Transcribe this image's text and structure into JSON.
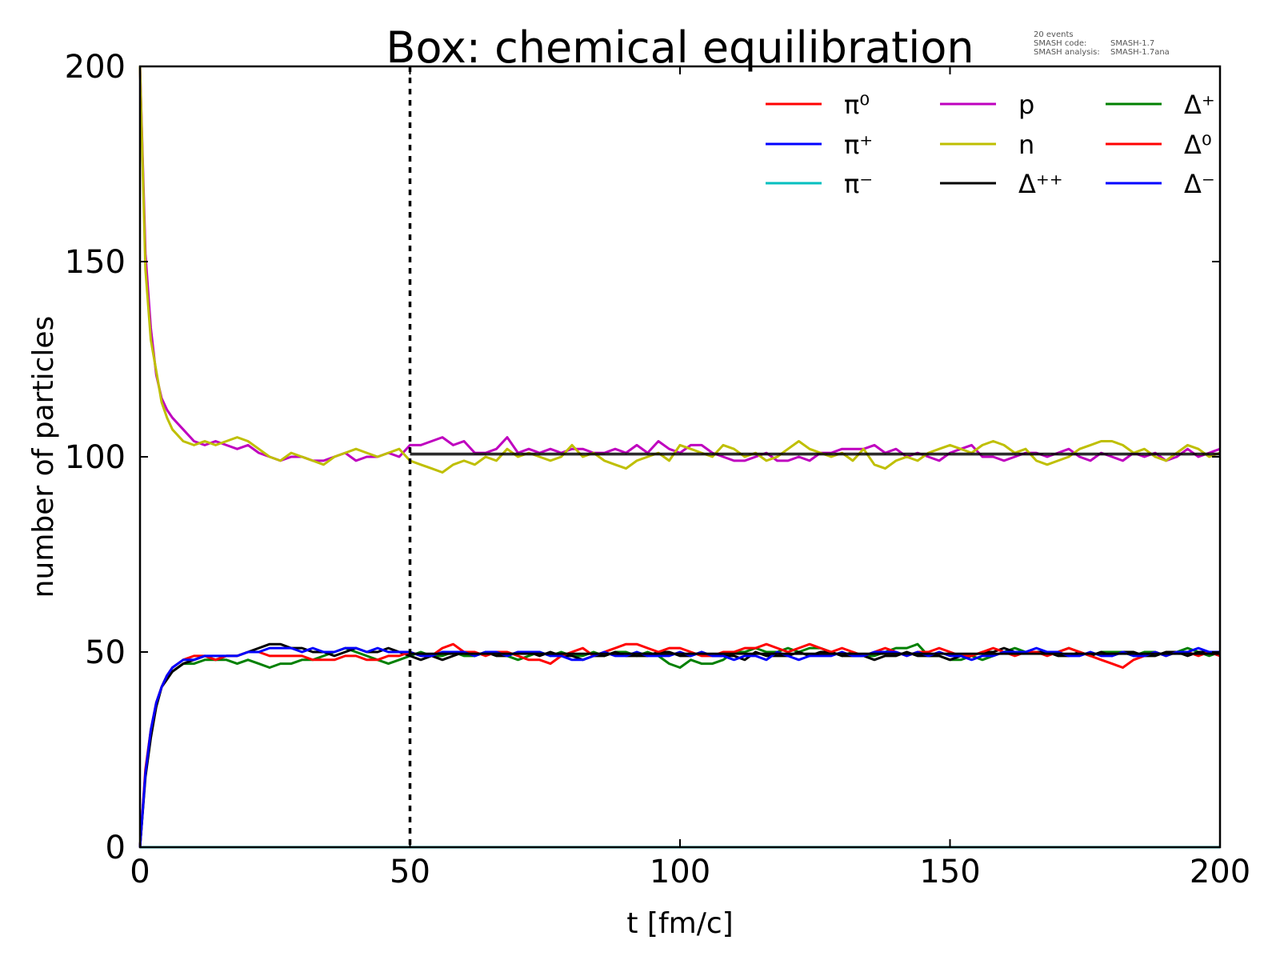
{
  "chart_data": {
    "type": "line",
    "title": "Box: chemical equilibration",
    "xlabel": "t [fm/c]",
    "ylabel": "number of particles",
    "xlim": [
      0,
      200
    ],
    "ylim": [
      0,
      200
    ],
    "xticks": [
      "0",
      "50",
      "100",
      "150",
      "200"
    ],
    "yticks": [
      "0",
      "50",
      "100",
      "150",
      "200"
    ],
    "annotation": {
      "events": "20 events",
      "code_label": "SMASH code:",
      "code_value": "SMASH-1.7",
      "analysis_label": "SMASH analysis:",
      "analysis_value": "SMASH-1.7ana"
    },
    "vertical_marker": {
      "x": 50,
      "style": "dotted"
    },
    "reference_lines": [
      {
        "y": 100.9,
        "x_start": 50,
        "x_end": 200
      },
      {
        "y": 100.5,
        "x_start": 50,
        "x_end": 200
      },
      {
        "y": 49.7,
        "x_start": 50,
        "x_end": 200
      },
      {
        "y": 49.4,
        "x_start": 50,
        "x_end": 200
      }
    ],
    "legend_position": "top-right",
    "x": [
      0,
      1,
      2,
      3,
      4,
      5,
      6,
      8,
      10,
      12,
      14,
      16,
      18,
      20,
      22,
      24,
      26,
      28,
      30,
      32,
      34,
      36,
      38,
      40,
      42,
      44,
      46,
      48,
      50,
      52,
      54,
      56,
      58,
      60,
      62,
      64,
      66,
      68,
      70,
      72,
      74,
      76,
      78,
      80,
      82,
      84,
      86,
      88,
      90,
      92,
      94,
      96,
      98,
      100,
      102,
      104,
      106,
      108,
      110,
      112,
      114,
      116,
      118,
      120,
      122,
      124,
      126,
      128,
      130,
      132,
      134,
      136,
      138,
      140,
      142,
      144,
      146,
      148,
      150,
      152,
      154,
      156,
      158,
      160,
      162,
      164,
      166,
      168,
      170,
      172,
      174,
      176,
      178,
      180,
      182,
      184,
      186,
      188,
      190,
      192,
      194,
      196,
      198,
      200
    ],
    "series": [
      {
        "name": "π⁰",
        "color": "#ff0000",
        "constant": 0
      },
      {
        "name": "π⁺",
        "color": "#0000ff",
        "constant": 0
      },
      {
        "name": "π⁻",
        "color": "#00bfbf",
        "constant": 0
      },
      {
        "name": "p",
        "color": "#bf00bf",
        "y": [
          200,
          152,
          133,
          121,
          115,
          112,
          110,
          107,
          104,
          103,
          104,
          103,
          102,
          103,
          101,
          100,
          99,
          100,
          100,
          99,
          99,
          100,
          101,
          99,
          100,
          100,
          101,
          100,
          103,
          103,
          104,
          105,
          103,
          104,
          101,
          101,
          102,
          105,
          101,
          102,
          101,
          102,
          101,
          102,
          102,
          101,
          101,
          102,
          101,
          103,
          101,
          104,
          102,
          101,
          103,
          103,
          101,
          100,
          99,
          99,
          100,
          101,
          99,
          99,
          100,
          99,
          101,
          101,
          102,
          102,
          102,
          103,
          101,
          102,
          100,
          101,
          100,
          99,
          101,
          102,
          103,
          100,
          100,
          99,
          100,
          101,
          101,
          100,
          101,
          102,
          100,
          99,
          101,
          100,
          99,
          101,
          100,
          101,
          99,
          100,
          102,
          100,
          101,
          102
        ]
      },
      {
        "name": "n",
        "color": "#bfbf00",
        "y": [
          200,
          148,
          130,
          122,
          114,
          110,
          107,
          104,
          103,
          104,
          103,
          104,
          105,
          104,
          102,
          100,
          99,
          101,
          100,
          99,
          98,
          100,
          101,
          102,
          101,
          100,
          101,
          102,
          99,
          98,
          97,
          96,
          98,
          99,
          98,
          100,
          99,
          102,
          100,
          101,
          100,
          99,
          100,
          103,
          100,
          101,
          99,
          98,
          97,
          99,
          100,
          101,
          99,
          103,
          102,
          101,
          100,
          103,
          102,
          100,
          101,
          99,
          100,
          102,
          104,
          102,
          101,
          100,
          101,
          99,
          102,
          98,
          97,
          99,
          100,
          99,
          101,
          102,
          103,
          102,
          101,
          103,
          104,
          103,
          101,
          102,
          99,
          98,
          99,
          100,
          102,
          103,
          104,
          104,
          103,
          101,
          102,
          100,
          99,
          101,
          103,
          102,
          100,
          101
        ]
      },
      {
        "name": "Δ⁺⁺",
        "color": "#000000",
        "y": [
          0,
          18,
          28,
          36,
          41,
          43,
          45,
          47,
          48,
          49,
          48,
          49,
          49,
          50,
          51,
          52,
          52,
          51,
          51,
          50,
          50,
          49,
          50,
          51,
          50,
          50,
          51,
          50,
          49,
          48,
          49,
          48,
          49,
          50,
          49,
          50,
          49,
          49,
          50,
          50,
          49,
          50,
          49,
          49,
          48,
          49,
          49,
          50,
          49,
          49,
          49,
          50,
          50,
          49,
          49,
          50,
          49,
          49,
          49,
          48,
          50,
          49,
          49,
          49,
          50,
          49,
          50,
          50,
          49,
          49,
          49,
          48,
          49,
          49,
          50,
          49,
          49,
          49,
          48,
          49,
          49,
          50,
          50,
          51,
          50,
          50,
          50,
          50,
          49,
          49,
          50,
          49,
          50,
          49,
          50,
          50,
          49,
          49,
          50,
          50,
          49,
          50,
          50,
          49
        ]
      },
      {
        "name": "Δ⁺",
        "color": "#008000",
        "y": [
          0,
          19,
          29,
          36,
          41,
          44,
          45,
          47,
          47,
          48,
          48,
          48,
          47,
          48,
          47,
          46,
          47,
          47,
          48,
          48,
          49,
          50,
          51,
          50,
          49,
          48,
          47,
          48,
          49,
          50,
          49,
          49,
          50,
          49,
          49,
          50,
          50,
          49,
          48,
          49,
          50,
          49,
          50,
          49,
          49,
          50,
          49,
          50,
          50,
          49,
          50,
          49,
          47,
          46,
          48,
          47,
          47,
          48,
          50,
          50,
          51,
          50,
          50,
          51,
          50,
          51,
          51,
          50,
          49,
          50,
          49,
          49,
          50,
          51,
          51,
          52,
          49,
          49,
          48,
          48,
          49,
          48,
          49,
          50,
          51,
          50,
          50,
          50,
          50,
          51,
          50,
          49,
          50,
          50,
          50,
          49,
          50,
          50,
          49,
          50,
          51,
          50,
          49,
          50
        ]
      },
      {
        "name": "Δ⁰",
        "color": "#ff0000",
        "y": [
          0,
          20,
          30,
          37,
          41,
          44,
          46,
          48,
          49,
          49,
          48,
          49,
          49,
          50,
          50,
          49,
          49,
          49,
          49,
          48,
          48,
          48,
          49,
          49,
          48,
          48,
          49,
          49,
          50,
          49,
          49,
          51,
          52,
          50,
          50,
          49,
          50,
          50,
          49,
          48,
          48,
          47,
          49,
          50,
          51,
          49,
          50,
          51,
          52,
          52,
          51,
          50,
          51,
          51,
          50,
          49,
          49,
          50,
          50,
          51,
          51,
          52,
          51,
          50,
          51,
          52,
          51,
          50,
          51,
          50,
          49,
          50,
          51,
          50,
          49,
          50,
          50,
          51,
          50,
          49,
          49,
          50,
          51,
          50,
          49,
          50,
          50,
          49,
          50,
          51,
          50,
          49,
          48,
          47,
          46,
          48,
          49,
          50,
          49,
          50,
          50,
          49,
          50,
          49
        ]
      },
      {
        "name": "Δ⁻",
        "color": "#0000ff",
        "y": [
          0,
          19,
          30,
          37,
          41,
          44,
          46,
          48,
          48,
          49,
          49,
          49,
          49,
          50,
          50,
          51,
          51,
          51,
          50,
          51,
          50,
          50,
          51,
          51,
          50,
          51,
          50,
          50,
          50,
          49,
          49,
          50,
          50,
          50,
          49,
          50,
          50,
          49,
          50,
          50,
          50,
          49,
          49,
          48,
          48,
          49,
          50,
          49,
          49,
          50,
          49,
          49,
          49,
          50,
          49,
          50,
          49,
          49,
          48,
          49,
          49,
          48,
          50,
          49,
          48,
          49,
          49,
          49,
          50,
          49,
          49,
          50,
          50,
          50,
          49,
          50,
          49,
          50,
          49,
          49,
          48,
          49,
          49,
          50,
          50,
          50,
          51,
          50,
          50,
          49,
          49,
          50,
          49,
          49,
          50,
          49,
          49,
          50,
          49,
          50,
          50,
          51,
          50,
          50
        ]
      }
    ]
  }
}
